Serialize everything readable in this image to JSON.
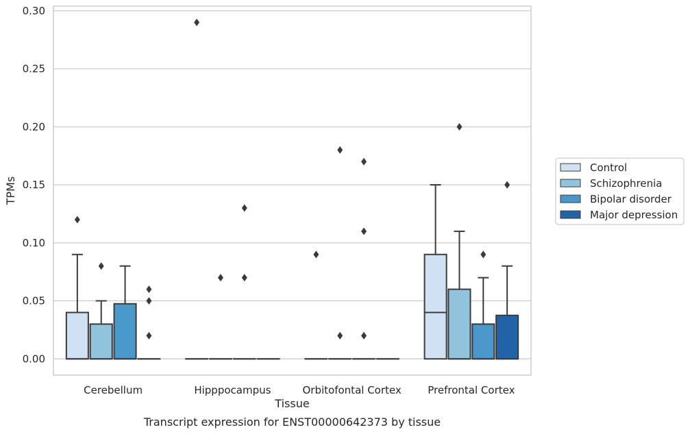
{
  "chart_data": {
    "type": "box",
    "caption": "Transcript expression for ENST00000642373 by tissue",
    "xlabel": "Tissue",
    "ylabel": "TPMs",
    "ylim": [
      -0.014,
      0.304
    ],
    "yticks": [
      0.0,
      0.05,
      0.1,
      0.15,
      0.2,
      0.25,
      0.3
    ],
    "ytick_labels": [
      "0.00",
      "0.05",
      "0.10",
      "0.15",
      "0.20",
      "0.25",
      "0.30"
    ],
    "grid": "horizontal",
    "legend_position": "right",
    "categories": [
      "Cerebellum",
      "Hipppocampus",
      "Orbitofontal Cortex",
      "Prefrontal Cortex"
    ],
    "series": [
      {
        "name": "Control",
        "color": "#cfe1f2",
        "boxes": [
          {
            "q1": 0.0,
            "median": 0.0,
            "q3": 0.04,
            "whisker_low": 0.0,
            "whisker_high": 0.09,
            "outliers": [
              0.12
            ]
          },
          {
            "q1": 0.0,
            "median": 0.0,
            "q3": 0.0,
            "whisker_low": 0.0,
            "whisker_high": 0.0,
            "outliers": [
              0.29
            ]
          },
          {
            "q1": 0.0,
            "median": 0.0,
            "q3": 0.0,
            "whisker_low": 0.0,
            "whisker_high": 0.0,
            "outliers": [
              0.09
            ]
          },
          {
            "q1": 0.0,
            "median": 0.04,
            "q3": 0.09,
            "whisker_low": 0.0,
            "whisker_high": 0.15,
            "outliers": []
          }
        ]
      },
      {
        "name": "Schizophrenia",
        "color": "#93c4de",
        "boxes": [
          {
            "q1": 0.0,
            "median": 0.0,
            "q3": 0.03,
            "whisker_low": 0.0,
            "whisker_high": 0.05,
            "outliers": [
              0.08
            ]
          },
          {
            "q1": 0.0,
            "median": 0.0,
            "q3": 0.0,
            "whisker_low": 0.0,
            "whisker_high": 0.0,
            "outliers": [
              0.07
            ]
          },
          {
            "q1": 0.0,
            "median": 0.0,
            "q3": 0.0,
            "whisker_low": 0.0,
            "whisker_high": 0.0,
            "outliers": [
              0.18,
              0.02
            ]
          },
          {
            "q1": 0.0,
            "median": 0.0,
            "q3": 0.06,
            "whisker_low": 0.0,
            "whisker_high": 0.11,
            "outliers": [
              0.2
            ]
          }
        ]
      },
      {
        "name": "Bipolar disorder",
        "color": "#4a98c9",
        "boxes": [
          {
            "q1": 0.0,
            "median": 0.0,
            "q3": 0.0475,
            "whisker_low": 0.0,
            "whisker_high": 0.08,
            "outliers": []
          },
          {
            "q1": 0.0,
            "median": 0.0,
            "q3": 0.0,
            "whisker_low": 0.0,
            "whisker_high": 0.0,
            "outliers": [
              0.13,
              0.07
            ]
          },
          {
            "q1": 0.0,
            "median": 0.0,
            "q3": 0.0,
            "whisker_low": 0.0,
            "whisker_high": 0.0,
            "outliers": [
              0.17,
              0.11,
              0.02
            ]
          },
          {
            "q1": 0.0,
            "median": 0.0,
            "q3": 0.03,
            "whisker_low": 0.0,
            "whisker_high": 0.07,
            "outliers": [
              0.09
            ]
          }
        ]
      },
      {
        "name": "Major depression",
        "color": "#2363a7",
        "boxes": [
          {
            "q1": 0.0,
            "median": 0.0,
            "q3": 0.0,
            "whisker_low": 0.0,
            "whisker_high": 0.0,
            "outliers": [
              0.06,
              0.05,
              0.02
            ]
          },
          {
            "q1": 0.0,
            "median": 0.0,
            "q3": 0.0,
            "whisker_low": 0.0,
            "whisker_high": 0.0,
            "outliers": []
          },
          {
            "q1": 0.0,
            "median": 0.0,
            "q3": 0.0,
            "whisker_low": 0.0,
            "whisker_high": 0.0,
            "outliers": []
          },
          {
            "q1": 0.0,
            "median": 0.0,
            "q3": 0.0375,
            "whisker_low": 0.0,
            "whisker_high": 0.08,
            "outliers": [
              0.15
            ]
          }
        ]
      }
    ]
  }
}
